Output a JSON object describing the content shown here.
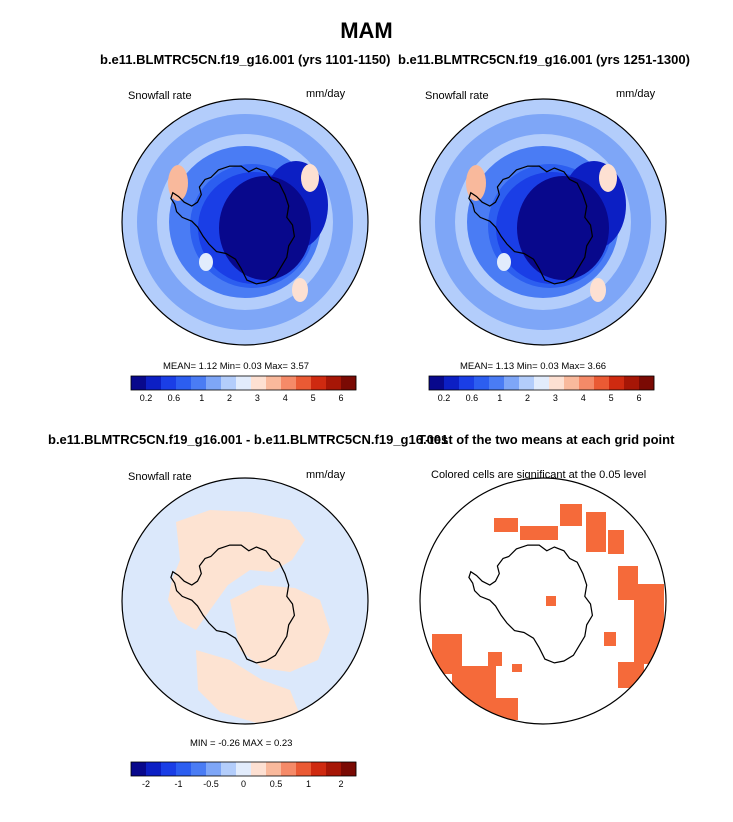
{
  "title": "MAM",
  "panels": [
    {
      "title": "b.e11.BLMTRC5CN.f19_g16.001 (yrs 1101-1150)",
      "left_label": "Snowfall rate",
      "right_label": "mm/day",
      "stats": "MEAN=   1.12  Min=   0.03  Max=   3.57"
    },
    {
      "title": "b.e11.BLMTRC5CN.f19_g16.001 (yrs 1251-1300)",
      "left_label": "Snowfall rate",
      "right_label": "mm/day",
      "stats": "MEAN=   1.13  Min=   0.03  Max=   3.66"
    },
    {
      "title": "b.e11.BLMTRC5CN.f19_g16.001 - b.e11.BLMTRC5CN.f19_g16.001",
      "left_label": "Snowfall rate",
      "right_label": "mm/day",
      "stats": "MIN =  -0.26 MAX =   0.23"
    },
    {
      "title": "T-test of the two means at each grid point",
      "left_label": "Colored cells are significant at the 0.05 level"
    }
  ],
  "colorbars": [
    {
      "colors": [
        "#08088c",
        "#0c1fc4",
        "#1a3ee6",
        "#2c5ef0",
        "#4a7cf4",
        "#7ea6f7",
        "#b3cdfb",
        "#e2ecfc",
        "#fde0d2",
        "#f9b99c",
        "#f58a68",
        "#ea5a34",
        "#cf2a10",
        "#a61606",
        "#7a0a04"
      ],
      "labels": [
        "0.2",
        "0.6",
        "1",
        "2",
        "3",
        "4",
        "5",
        "6"
      ]
    },
    {
      "colors": [
        "#08088c",
        "#0c1fc4",
        "#1a3ee6",
        "#2c5ef0",
        "#4a7cf4",
        "#7ea6f7",
        "#b3cdfb",
        "#e2ecfc",
        "#fde0d2",
        "#f9b99c",
        "#f58a68",
        "#ea5a34",
        "#cf2a10",
        "#a61606",
        "#7a0a04"
      ],
      "labels": [
        "0.2",
        "0.6",
        "1",
        "2",
        "3",
        "4",
        "5",
        "6"
      ]
    },
    {
      "colors": [
        "#08088c",
        "#0c1fc4",
        "#1a3ee6",
        "#2c5ef0",
        "#4a7cf4",
        "#7ea6f7",
        "#b3cdfb",
        "#e2ecfc",
        "#fde0d2",
        "#f9b99c",
        "#f58a68",
        "#ea5a34",
        "#cf2a10",
        "#a61606",
        "#7a0a04"
      ],
      "labels": [
        "-2",
        "-1",
        "-0.5",
        "0",
        "0.5",
        "1",
        "2"
      ]
    }
  ],
  "colors": {
    "ocean_light": "#9dbcf6",
    "ocean_mid": "#4a7cf4",
    "ice_dark": "#08088c",
    "diff_positive": "#fde3d2",
    "diff_negative": "#dbe8fb",
    "significant": "#f56a3a"
  }
}
